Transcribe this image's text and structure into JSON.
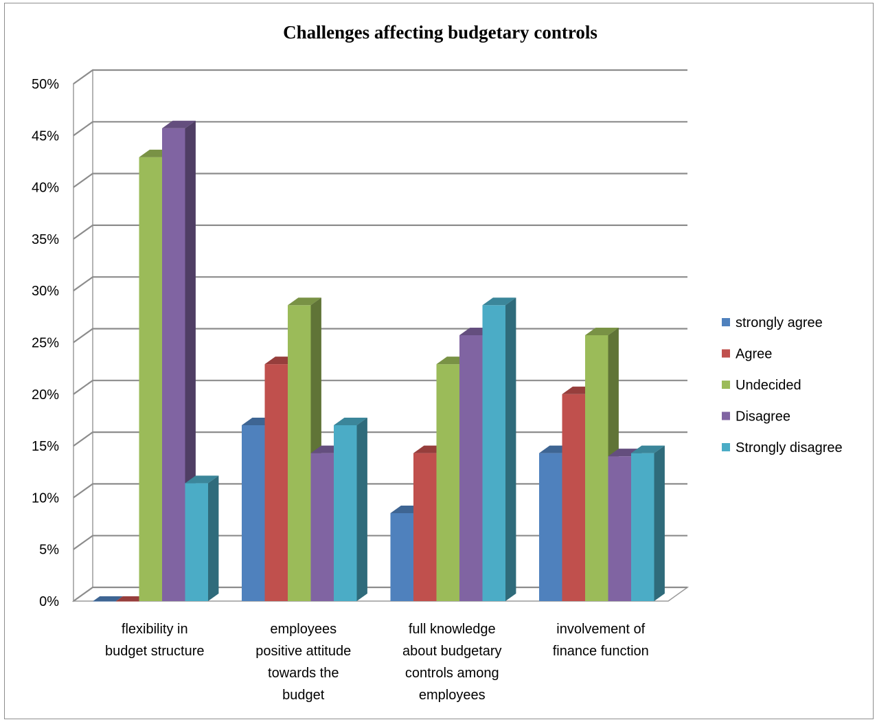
{
  "chart_data": {
    "type": "bar",
    "title": "Challenges affecting budgetary controls",
    "xlabel": "",
    "ylabel": "",
    "ylim": [
      0,
      50
    ],
    "y_tick_step": 5,
    "y_unit": "%",
    "three_d": true,
    "grid": true,
    "legend_position": "right",
    "categories": [
      "flexibility in budget structure",
      "employees positive attitude towards the budget",
      "full knowledge about budgetary controls among employees",
      "involvement of finance function"
    ],
    "category_label_lines": [
      [
        "flexibility in",
        "budget structure"
      ],
      [
        "employees",
        "positive attitude",
        "towards the",
        "budget"
      ],
      [
        "full knowledge",
        "about budgetary",
        "controls among",
        "employees"
      ],
      [
        "involvement of",
        "finance function"
      ]
    ],
    "series": [
      {
        "name": "strongly agree",
        "color": "#4f81bd",
        "values": [
          0,
          17,
          8.5,
          14.3
        ]
      },
      {
        "name": "Agree",
        "color": "#c0504d",
        "values": [
          0,
          22.9,
          14.3,
          20
        ]
      },
      {
        "name": "Undecided",
        "color": "#9bbb59",
        "values": [
          42.9,
          28.6,
          22.9,
          25.7
        ]
      },
      {
        "name": "Disagree",
        "color": "#8064a2",
        "values": [
          45.7,
          14.3,
          25.7,
          14
        ]
      },
      {
        "name": "Strongly disagree",
        "color": "#4bacc6",
        "values": [
          11.4,
          17,
          28.6,
          14.3
        ]
      }
    ]
  }
}
